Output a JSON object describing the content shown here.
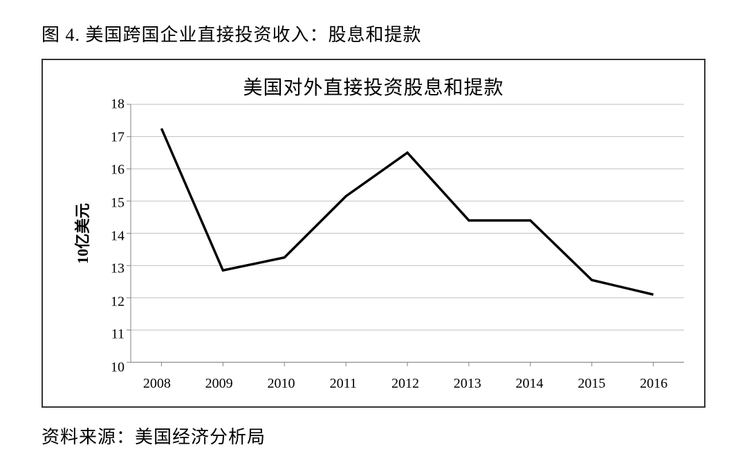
{
  "caption": "图 4. 美国跨国企业直接投资收入：股息和提款",
  "source": "资料来源：美国经济分析局",
  "chart": {
    "type": "line",
    "title": "美国对外直接投资股息和提款",
    "title_fontsize": 28,
    "ylabel": "10亿美元",
    "label_fontsize": 22,
    "label_fontweight": "bold",
    "x_categories": [
      "2008",
      "2009",
      "2010",
      "2011",
      "2012",
      "2013",
      "2014",
      "2015",
      "2016"
    ],
    "y_values": [
      17.25,
      12.85,
      13.25,
      15.15,
      16.5,
      14.4,
      14.4,
      12.55,
      12.1
    ],
    "ylim": [
      10,
      18
    ],
    "ytick_step": 1,
    "xtick_fontsize": 20,
    "ytick_fontsize": 20,
    "line_color": "#000000",
    "line_width": 3.5,
    "grid_color": "#bfbfbf",
    "grid_width": 1,
    "axis_color": "#808080",
    "axis_width": 1,
    "tick_color": "#808080",
    "tick_length": 6,
    "background_color": "#ffffff",
    "frame_border_color": "#333333",
    "frame_border_width": 2
  }
}
